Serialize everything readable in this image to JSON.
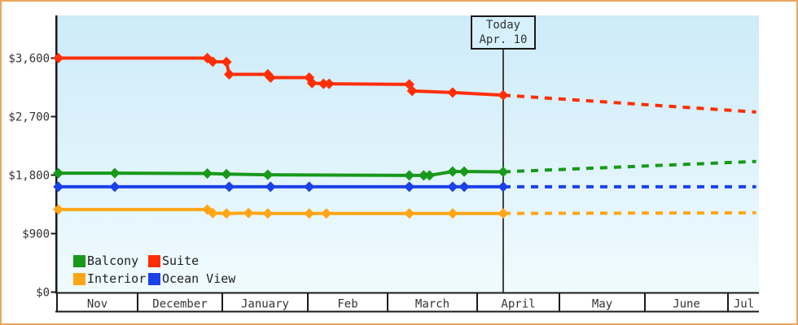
{
  "frame": {
    "border_color": "#eaa65e",
    "background": "#ffffff"
  },
  "chart_data": {
    "type": "line",
    "title": "",
    "x_axis": {
      "label": "",
      "months": [
        "Nov",
        "December",
        "January",
        "Feb",
        "March",
        "April",
        "May",
        "June",
        "Jul"
      ],
      "days_in_month": [
        30,
        31,
        31,
        28,
        31,
        30,
        31,
        30,
        31
      ]
    },
    "y_axis": {
      "label": "",
      "tick_labels": [
        "$0",
        "$900",
        "$1,800",
        "$2,700",
        "$3,600"
      ],
      "tick_values": [
        0,
        900,
        1800,
        2700,
        3600
      ],
      "ylim": [
        0,
        4260
      ],
      "unit": "USD"
    },
    "grid": "off",
    "legend_position": "bottom-left",
    "today_marker": {
      "line1": "Today",
      "line2": "Apr. 10",
      "month_index": 5,
      "day": 10
    },
    "series": [
      {
        "name": "Balcony",
        "color": "#18991a",
        "points": [
          {
            "m": 0,
            "day": 1,
            "price": 1830
          },
          {
            "m": 0,
            "day": 22,
            "price": 1830
          },
          {
            "m": 1,
            "day": 26,
            "price": 1825
          },
          {
            "m": 2,
            "day": 2,
            "price": 1815
          },
          {
            "m": 2,
            "day": 17,
            "price": 1805
          },
          {
            "m": 4,
            "day": 8,
            "price": 1795
          },
          {
            "m": 4,
            "day": 13,
            "price": 1795
          },
          {
            "m": 4,
            "day": 15,
            "price": 1795
          },
          {
            "m": 4,
            "day": 23,
            "price": 1855
          },
          {
            "m": 4,
            "day": 27,
            "price": 1855
          },
          {
            "m": 5,
            "day": 10,
            "price": 1850
          }
        ],
        "projection": {
          "m": 8,
          "day": 28,
          "price": 2010
        }
      },
      {
        "name": "Suite",
        "color": "#ff2e04",
        "points": [
          {
            "m": 0,
            "day": 1,
            "price": 3600
          },
          {
            "m": 1,
            "day": 26,
            "price": 3600
          },
          {
            "m": 1,
            "day": 28,
            "price": 3545
          },
          {
            "m": 2,
            "day": 2,
            "price": 3540
          },
          {
            "m": 2,
            "day": 3,
            "price": 3350
          },
          {
            "m": 2,
            "day": 17,
            "price": 3350
          },
          {
            "m": 2,
            "day": 18,
            "price": 3300
          },
          {
            "m": 3,
            "day": 1,
            "price": 3300
          },
          {
            "m": 3,
            "day": 2,
            "price": 3215
          },
          {
            "m": 3,
            "day": 6,
            "price": 3205
          },
          {
            "m": 3,
            "day": 8,
            "price": 3205
          },
          {
            "m": 4,
            "day": 8,
            "price": 3195
          },
          {
            "m": 4,
            "day": 9,
            "price": 3095
          },
          {
            "m": 4,
            "day": 23,
            "price": 3070
          },
          {
            "m": 5,
            "day": 10,
            "price": 3030
          }
        ],
        "projection": {
          "m": 8,
          "day": 28,
          "price": 2770
        }
      },
      {
        "name": "Interior",
        "color": "#ffa617",
        "points": [
          {
            "m": 0,
            "day": 1,
            "price": 1270
          },
          {
            "m": 1,
            "day": 26,
            "price": 1270
          },
          {
            "m": 1,
            "day": 28,
            "price": 1215
          },
          {
            "m": 2,
            "day": 2,
            "price": 1210
          },
          {
            "m": 2,
            "day": 10,
            "price": 1215
          },
          {
            "m": 2,
            "day": 17,
            "price": 1210
          },
          {
            "m": 3,
            "day": 1,
            "price": 1210
          },
          {
            "m": 3,
            "day": 7,
            "price": 1210
          },
          {
            "m": 4,
            "day": 8,
            "price": 1210
          },
          {
            "m": 4,
            "day": 23,
            "price": 1210
          },
          {
            "m": 5,
            "day": 10,
            "price": 1210
          }
        ],
        "projection": {
          "m": 8,
          "day": 28,
          "price": 1220
        }
      },
      {
        "name": "Ocean View",
        "color": "#1b41e8",
        "points": [
          {
            "m": 0,
            "day": 1,
            "price": 1620
          },
          {
            "m": 0,
            "day": 22,
            "price": 1620
          },
          {
            "m": 2,
            "day": 3,
            "price": 1620
          },
          {
            "m": 2,
            "day": 18,
            "price": 1620
          },
          {
            "m": 3,
            "day": 1,
            "price": 1620
          },
          {
            "m": 4,
            "day": 8,
            "price": 1620
          },
          {
            "m": 4,
            "day": 23,
            "price": 1620
          },
          {
            "m": 4,
            "day": 27,
            "price": 1620
          },
          {
            "m": 5,
            "day": 10,
            "price": 1620
          }
        ],
        "projection": {
          "m": 8,
          "day": 28,
          "price": 1620
        }
      }
    ],
    "styles": {
      "background_top": "#cdebf9",
      "background_bottom": "#f0fbfe",
      "axis_color": "#1a1a1a",
      "text_color": "#333333",
      "today_line_color": "#2f2f2f",
      "today_box_bg": "#d6f1fc"
    }
  }
}
